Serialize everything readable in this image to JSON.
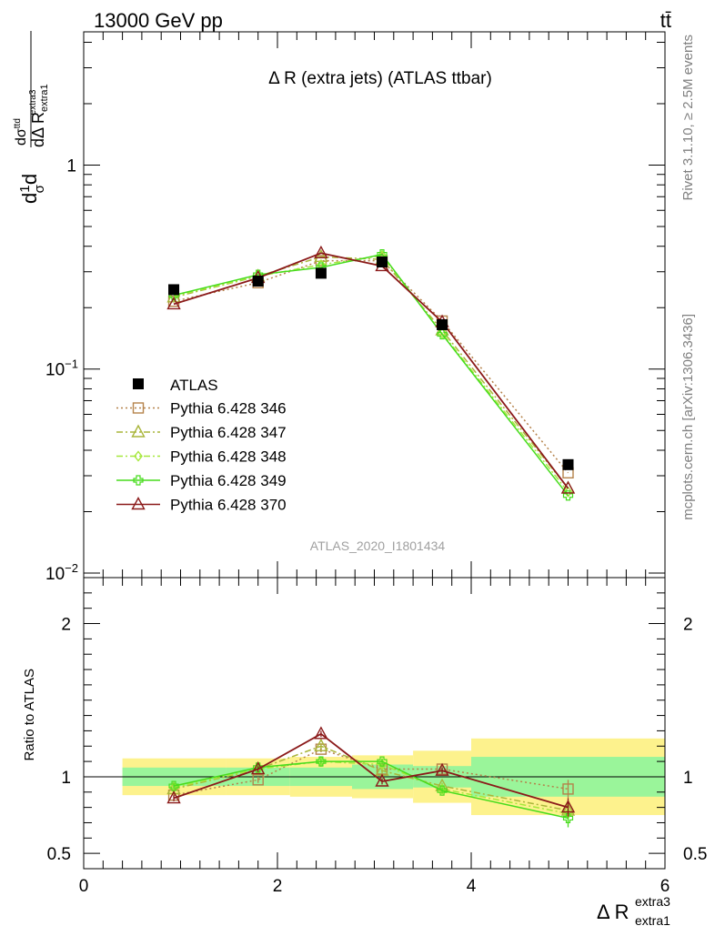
{
  "header": {
    "energy_label": "13000 GeV pp",
    "process_label": "tt̄",
    "side_label_top": "Rivet 3.1.10, ≥ 2.5M events",
    "side_label_bottom": "mcplots.cern.ch [arXiv:1306.3436]"
  },
  "main_plot": {
    "title": "Δ R (extra jets) (ATLAS ttbar)",
    "analysis_id": "ATLAS_2020_I1801434",
    "y_title": {
      "main": "d",
      "frac_num": "1",
      "frac_den": "σ",
      "dsigma": "dσ",
      "dsigma_sup": "ttd",
      "dR": "dΔ R",
      "dR_sub": "extra1",
      "dR_sup": "extra3"
    },
    "y_ticks": [
      {
        "value": 1,
        "mantissa": "1",
        "exp": ""
      },
      {
        "value": 0.1,
        "mantissa": "10",
        "exp": "−1"
      },
      {
        "value": 0.01,
        "mantissa": "10",
        "exp": "−2"
      }
    ],
    "ylim": [
      0.0095,
      4.5
    ],
    "log_y": true
  },
  "ratio_plot": {
    "y_title": "Ratio to ATLAS",
    "y_ticks": [
      {
        "value": 2,
        "label": "2"
      },
      {
        "value": 1,
        "label": "1"
      },
      {
        "value": 0.5,
        "label": "0.5"
      }
    ],
    "ylim": [
      0.4,
      2.3
    ]
  },
  "x_axis": {
    "title": "Δ R",
    "title_sub": "extra1",
    "title_sup": "extra3",
    "ticks": [
      {
        "value": 0,
        "label": "0"
      },
      {
        "value": 2,
        "label": "2"
      },
      {
        "value": 4,
        "label": "4"
      },
      {
        "value": 6,
        "label": "6"
      }
    ],
    "xlim": [
      0,
      6
    ]
  },
  "chart_data": {
    "type": "line",
    "log_y": true,
    "x": [
      0.93,
      1.8,
      2.45,
      3.08,
      3.7,
      5.0
    ],
    "bins": [
      [
        0.4,
        1.47
      ],
      [
        1.47,
        2.13
      ],
      [
        2.13,
        2.77
      ],
      [
        2.77,
        3.4
      ],
      [
        3.4,
        4.0
      ],
      [
        4.0,
        6.0
      ]
    ],
    "reference": {
      "name": "ATLAS",
      "values": [
        0.245,
        0.27,
        0.295,
        0.335,
        0.165,
        0.034
      ],
      "band_stat": [
        0.06,
        0.06,
        0.06,
        0.08,
        0.07,
        0.13
      ],
      "band_total": [
        0.12,
        0.12,
        0.13,
        0.14,
        0.17,
        0.25
      ]
    },
    "series": [
      {
        "name": "Pythia 6.428 346",
        "color": "#b5824a",
        "dash": "2,3",
        "marker": "square",
        "values": [
          0.215,
          0.265,
          0.34,
          0.34,
          0.172,
          0.031
        ],
        "ratio": [
          0.88,
          0.98,
          1.18,
          1.05,
          1.05,
          0.92
        ]
      },
      {
        "name": "Pythia 6.428 347",
        "color": "#a9b53a",
        "dash": "7,3,2,3",
        "marker": "triangle",
        "values": [
          0.225,
          0.285,
          0.355,
          0.345,
          0.155,
          0.026
        ],
        "ratio": [
          0.92,
          1.05,
          1.2,
          1.04,
          0.94,
          0.78
        ]
      },
      {
        "name": "Pythia 6.428 348",
        "color": "#a6e83c",
        "dash": "7,3,2,3",
        "marker": "diamond",
        "values": [
          0.228,
          0.285,
          0.325,
          0.36,
          0.15,
          0.025
        ],
        "ratio": [
          0.93,
          1.05,
          1.1,
          1.08,
          0.92,
          0.76
        ]
      },
      {
        "name": "Pythia 6.428 349",
        "color": "#46dc1c",
        "dash": "",
        "marker": "cross",
        "values": [
          0.23,
          0.29,
          0.315,
          0.365,
          0.148,
          0.024
        ],
        "ratio": [
          0.94,
          1.06,
          1.1,
          1.1,
          0.91,
          0.73
        ]
      },
      {
        "name": "Pythia 6.428 370",
        "color": "#8b1a1a",
        "dash": "",
        "marker": "triangle",
        "values": [
          0.208,
          0.28,
          0.37,
          0.32,
          0.17,
          0.026
        ],
        "ratio": [
          0.86,
          1.05,
          1.28,
          0.97,
          1.04,
          0.8
        ]
      }
    ]
  }
}
